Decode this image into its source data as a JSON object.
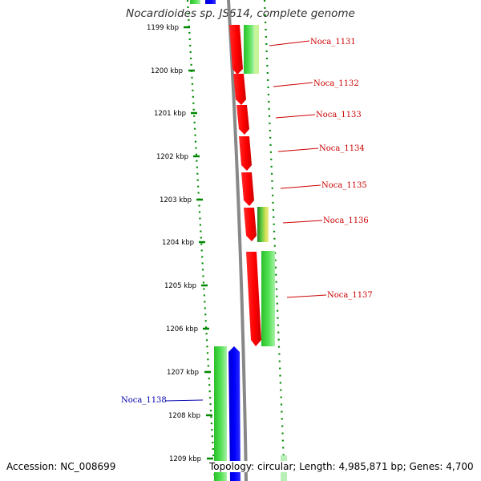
{
  "title": "Nocardioides sp. JS614, complete genome",
  "footer": {
    "accession": "Accession: NC_008699",
    "topology": "Topology: circular; Length: 4,985,871 bp; Genes: 4,700"
  },
  "axis": {
    "ticks": [
      "1199 kbp",
      "1200 kbp",
      "1201 kbp",
      "1202 kbp",
      "1203 kbp",
      "1204 kbp",
      "1205 kbp",
      "1206 kbp",
      "1207 kbp",
      "1208 kbp",
      "1209 kbp"
    ]
  },
  "genes": [
    {
      "label": "Noca_1131",
      "color": "#cc0000"
    },
    {
      "label": "Noca_1132",
      "color": "#cc0000"
    },
    {
      "label": "Noca_1133",
      "color": "#cc0000"
    },
    {
      "label": "Noca_1134",
      "color": "#cc0000"
    },
    {
      "label": "Noca_1135",
      "color": "#cc0000"
    },
    {
      "label": "Noca_1136",
      "color": "#cc0000"
    },
    {
      "label": "Noca_1137",
      "color": "#cc0000"
    },
    {
      "label": "Noca_1138",
      "color": "#0000aa"
    }
  ],
  "colors": {
    "cds": "#ff0000",
    "gene": "#22bb22",
    "blue": "#0000ff",
    "backbone": "#888888",
    "dots": "#008800"
  }
}
